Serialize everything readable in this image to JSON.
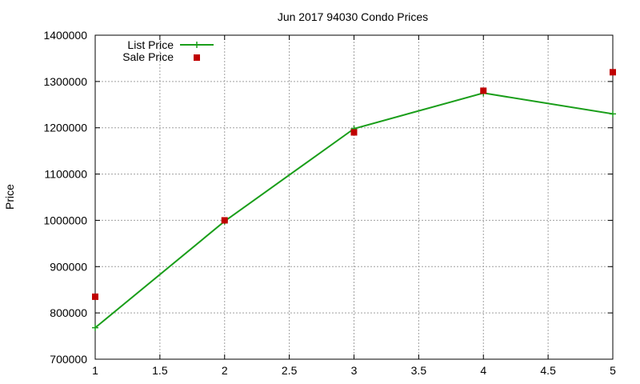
{
  "chart_data": {
    "type": "line",
    "title": "Jun 2017 94030 Condo Prices",
    "xlabel": "",
    "ylabel": "Price",
    "xlim": [
      1,
      5
    ],
    "ylim": [
      700000,
      1400000
    ],
    "x_ticks": [
      "1",
      "1.5",
      "2",
      "2.5",
      "3",
      "3.5",
      "4",
      "4.5",
      "5"
    ],
    "y_ticks": [
      "700000",
      "800000",
      "900000",
      "1000000",
      "1100000",
      "1200000",
      "1300000",
      "1400000"
    ],
    "grid": true,
    "legend_position": "top-left",
    "series": [
      {
        "name": "List Price",
        "style": "line-with-plus-markers",
        "color": "#1a9e1a",
        "x": [
          1,
          2,
          3,
          4,
          5
        ],
        "values": [
          768000,
          998000,
          1198000,
          1275000,
          1230000
        ]
      },
      {
        "name": "Sale Price",
        "style": "square-markers",
        "color": "#c00000",
        "x": [
          1,
          2,
          3,
          4,
          5
        ],
        "values": [
          835000,
          1000000,
          1190000,
          1280000,
          1320000
        ]
      }
    ]
  }
}
